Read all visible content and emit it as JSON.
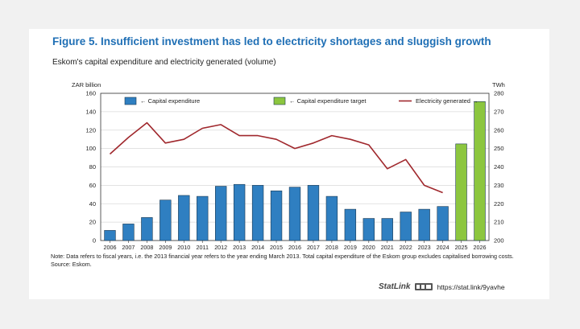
{
  "figure": {
    "title": "Figure 5. Insufficient investment has led to electricity shortages and sluggish growth",
    "subtitle": "Eskom's capital expenditure and electricity generated (volume)",
    "note": "Note: Data refers to fiscal years, i.e. the 2013 financial year refers to the year ending March 2013. Total capital expenditure of the Eskom group excludes capitalised borrowing costs.",
    "source": "Source: Eskom.",
    "statlink_brand": "StatLink",
    "statlink_url": "https://stat.link/9yavhe",
    "logo_icon": "oecd-logo-icon"
  },
  "chart_data": {
    "type": "bar",
    "categories": [
      "2006",
      "2007",
      "2008",
      "2009",
      "2010",
      "2011",
      "2012",
      "2013",
      "2014",
      "2015",
      "2016",
      "2017",
      "2018",
      "2019",
      "2020",
      "2021",
      "2022",
      "2023",
      "2024",
      "2025",
      "2026"
    ],
    "y_left": {
      "label": "ZAR billion",
      "lim": [
        0,
        160
      ],
      "ticks": [
        0,
        20,
        40,
        60,
        80,
        100,
        120,
        140,
        160
      ]
    },
    "y_right": {
      "label": "TWh",
      "lim": [
        200,
        280
      ],
      "ticks": [
        200,
        210,
        220,
        230,
        240,
        250,
        260,
        270,
        280
      ]
    },
    "grid": true,
    "legend_position": "top",
    "series": [
      {
        "name": "← Capital expenditure",
        "type": "bar",
        "axis": "left",
        "color": "#2f7fc1",
        "values": [
          11,
          18,
          25,
          44,
          49,
          48,
          59,
          61,
          60,
          54,
          58,
          60,
          48,
          34,
          24,
          24,
          31,
          34,
          37,
          null,
          null
        ]
      },
      {
        "name": "← Capital expenditure target",
        "type": "bar",
        "axis": "left",
        "color": "#8cc63f",
        "values": [
          null,
          null,
          null,
          null,
          null,
          null,
          null,
          null,
          null,
          null,
          null,
          null,
          null,
          null,
          null,
          null,
          null,
          null,
          null,
          105,
          151
        ]
      },
      {
        "name": "Electricity generated →",
        "type": "line",
        "axis": "right",
        "color": "#a0282d",
        "values": [
          247,
          256,
          264,
          253,
          255,
          261,
          263,
          257,
          257,
          255,
          250,
          253,
          257,
          255,
          252,
          239,
          244,
          230,
          226,
          null,
          null
        ]
      }
    ]
  }
}
